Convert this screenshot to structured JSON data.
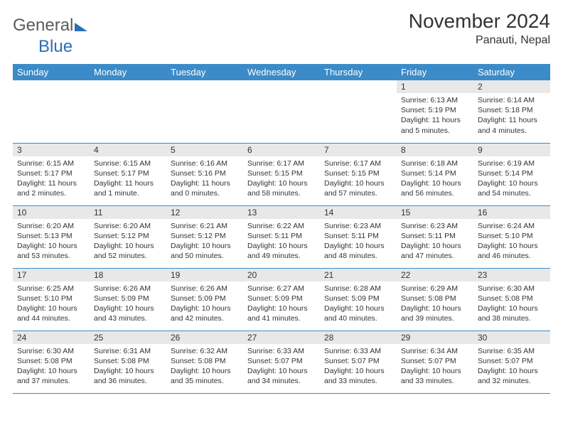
{
  "logo": {
    "text1": "General",
    "text2": "Blue"
  },
  "title": "November 2024",
  "location": "Panauti, Nepal",
  "style": {
    "header_bg": "#3b8bc9",
    "header_fg": "#ffffff",
    "daynum_bg": "#e8e8e8",
    "border_color": "#3b8bc9",
    "title_fontsize": 28,
    "weekday_fontsize": 13,
    "cell_fontsize": 10.5
  },
  "weekdays": [
    "Sunday",
    "Monday",
    "Tuesday",
    "Wednesday",
    "Thursday",
    "Friday",
    "Saturday"
  ],
  "weeks": [
    [
      {
        "n": "",
        "l": []
      },
      {
        "n": "",
        "l": []
      },
      {
        "n": "",
        "l": []
      },
      {
        "n": "",
        "l": []
      },
      {
        "n": "",
        "l": []
      },
      {
        "n": "1",
        "l": [
          "Sunrise: 6:13 AM",
          "Sunset: 5:19 PM",
          "Daylight: 11 hours",
          "and 5 minutes."
        ]
      },
      {
        "n": "2",
        "l": [
          "Sunrise: 6:14 AM",
          "Sunset: 5:18 PM",
          "Daylight: 11 hours",
          "and 4 minutes."
        ]
      }
    ],
    [
      {
        "n": "3",
        "l": [
          "Sunrise: 6:15 AM",
          "Sunset: 5:17 PM",
          "Daylight: 11 hours",
          "and 2 minutes."
        ]
      },
      {
        "n": "4",
        "l": [
          "Sunrise: 6:15 AM",
          "Sunset: 5:17 PM",
          "Daylight: 11 hours",
          "and 1 minute."
        ]
      },
      {
        "n": "5",
        "l": [
          "Sunrise: 6:16 AM",
          "Sunset: 5:16 PM",
          "Daylight: 11 hours",
          "and 0 minutes."
        ]
      },
      {
        "n": "6",
        "l": [
          "Sunrise: 6:17 AM",
          "Sunset: 5:15 PM",
          "Daylight: 10 hours",
          "and 58 minutes."
        ]
      },
      {
        "n": "7",
        "l": [
          "Sunrise: 6:17 AM",
          "Sunset: 5:15 PM",
          "Daylight: 10 hours",
          "and 57 minutes."
        ]
      },
      {
        "n": "8",
        "l": [
          "Sunrise: 6:18 AM",
          "Sunset: 5:14 PM",
          "Daylight: 10 hours",
          "and 56 minutes."
        ]
      },
      {
        "n": "9",
        "l": [
          "Sunrise: 6:19 AM",
          "Sunset: 5:14 PM",
          "Daylight: 10 hours",
          "and 54 minutes."
        ]
      }
    ],
    [
      {
        "n": "10",
        "l": [
          "Sunrise: 6:20 AM",
          "Sunset: 5:13 PM",
          "Daylight: 10 hours",
          "and 53 minutes."
        ]
      },
      {
        "n": "11",
        "l": [
          "Sunrise: 6:20 AM",
          "Sunset: 5:12 PM",
          "Daylight: 10 hours",
          "and 52 minutes."
        ]
      },
      {
        "n": "12",
        "l": [
          "Sunrise: 6:21 AM",
          "Sunset: 5:12 PM",
          "Daylight: 10 hours",
          "and 50 minutes."
        ]
      },
      {
        "n": "13",
        "l": [
          "Sunrise: 6:22 AM",
          "Sunset: 5:11 PM",
          "Daylight: 10 hours",
          "and 49 minutes."
        ]
      },
      {
        "n": "14",
        "l": [
          "Sunrise: 6:23 AM",
          "Sunset: 5:11 PM",
          "Daylight: 10 hours",
          "and 48 minutes."
        ]
      },
      {
        "n": "15",
        "l": [
          "Sunrise: 6:23 AM",
          "Sunset: 5:11 PM",
          "Daylight: 10 hours",
          "and 47 minutes."
        ]
      },
      {
        "n": "16",
        "l": [
          "Sunrise: 6:24 AM",
          "Sunset: 5:10 PM",
          "Daylight: 10 hours",
          "and 46 minutes."
        ]
      }
    ],
    [
      {
        "n": "17",
        "l": [
          "Sunrise: 6:25 AM",
          "Sunset: 5:10 PM",
          "Daylight: 10 hours",
          "and 44 minutes."
        ]
      },
      {
        "n": "18",
        "l": [
          "Sunrise: 6:26 AM",
          "Sunset: 5:09 PM",
          "Daylight: 10 hours",
          "and 43 minutes."
        ]
      },
      {
        "n": "19",
        "l": [
          "Sunrise: 6:26 AM",
          "Sunset: 5:09 PM",
          "Daylight: 10 hours",
          "and 42 minutes."
        ]
      },
      {
        "n": "20",
        "l": [
          "Sunrise: 6:27 AM",
          "Sunset: 5:09 PM",
          "Daylight: 10 hours",
          "and 41 minutes."
        ]
      },
      {
        "n": "21",
        "l": [
          "Sunrise: 6:28 AM",
          "Sunset: 5:09 PM",
          "Daylight: 10 hours",
          "and 40 minutes."
        ]
      },
      {
        "n": "22",
        "l": [
          "Sunrise: 6:29 AM",
          "Sunset: 5:08 PM",
          "Daylight: 10 hours",
          "and 39 minutes."
        ]
      },
      {
        "n": "23",
        "l": [
          "Sunrise: 6:30 AM",
          "Sunset: 5:08 PM",
          "Daylight: 10 hours",
          "and 38 minutes."
        ]
      }
    ],
    [
      {
        "n": "24",
        "l": [
          "Sunrise: 6:30 AM",
          "Sunset: 5:08 PM",
          "Daylight: 10 hours",
          "and 37 minutes."
        ]
      },
      {
        "n": "25",
        "l": [
          "Sunrise: 6:31 AM",
          "Sunset: 5:08 PM",
          "Daylight: 10 hours",
          "and 36 minutes."
        ]
      },
      {
        "n": "26",
        "l": [
          "Sunrise: 6:32 AM",
          "Sunset: 5:08 PM",
          "Daylight: 10 hours",
          "and 35 minutes."
        ]
      },
      {
        "n": "27",
        "l": [
          "Sunrise: 6:33 AM",
          "Sunset: 5:07 PM",
          "Daylight: 10 hours",
          "and 34 minutes."
        ]
      },
      {
        "n": "28",
        "l": [
          "Sunrise: 6:33 AM",
          "Sunset: 5:07 PM",
          "Daylight: 10 hours",
          "and 33 minutes."
        ]
      },
      {
        "n": "29",
        "l": [
          "Sunrise: 6:34 AM",
          "Sunset: 5:07 PM",
          "Daylight: 10 hours",
          "and 33 minutes."
        ]
      },
      {
        "n": "30",
        "l": [
          "Sunrise: 6:35 AM",
          "Sunset: 5:07 PM",
          "Daylight: 10 hours",
          "and 32 minutes."
        ]
      }
    ]
  ]
}
